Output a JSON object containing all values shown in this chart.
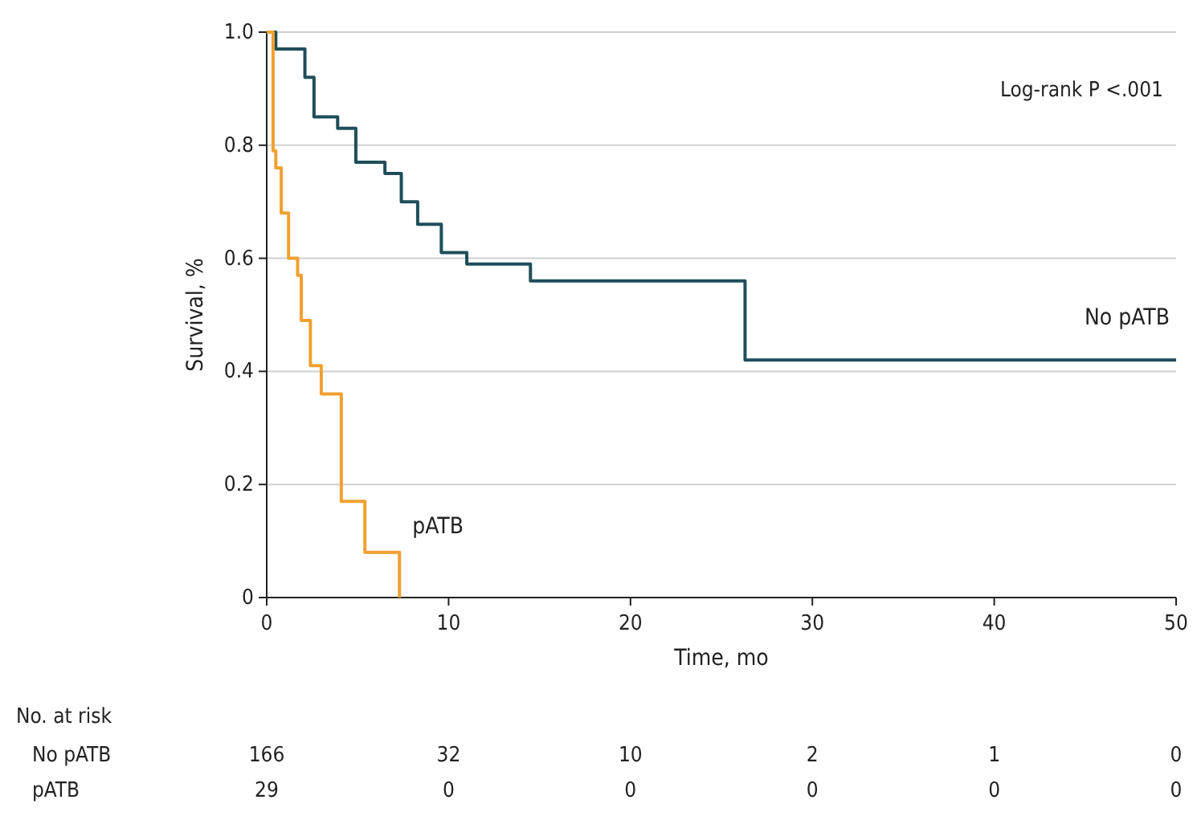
{
  "chart_data": {
    "type": "step",
    "xlabel": "Time, mo",
    "ylabel": "Survival, %",
    "xlim": [
      0,
      50
    ],
    "xticks": [
      0,
      10,
      20,
      30,
      40,
      50
    ],
    "ylim": [
      0,
      1
    ],
    "yticks": [
      {
        "value": 0,
        "label": "0"
      },
      {
        "value": 0.2,
        "label": "0.2"
      },
      {
        "value": 0.4,
        "label": "0.4"
      },
      {
        "value": 0.6,
        "label": "0.6"
      },
      {
        "value": 0.8,
        "label": "0.8"
      },
      {
        "value": 1,
        "label": "1.0"
      }
    ],
    "grid": "y",
    "series": [
      {
        "name": "No pATB",
        "color": "#1f4e5a",
        "x": [
          0,
          0.5,
          2.1,
          2.6,
          3.9,
          4.9,
          6.5,
          7.4,
          8.3,
          9.6,
          11,
          14.5,
          26.3,
          50
        ],
        "values": [
          1,
          0.97,
          0.92,
          0.85,
          0.83,
          0.77,
          0.75,
          0.7,
          0.66,
          0.61,
          0.59,
          0.56,
          0.42,
          0.42
        ]
      },
      {
        "name": "pATB",
        "color": "#f0a030",
        "x": [
          0,
          0.35,
          0.5,
          0.8,
          1.2,
          1.7,
          1.9,
          2.4,
          3,
          4.1,
          5.4,
          7.3
        ],
        "values": [
          1,
          0.79,
          0.76,
          0.68,
          0.6,
          0.57,
          0.49,
          0.41,
          0.36,
          0.17,
          0.08,
          0
        ]
      }
    ],
    "annotations": [
      "Log-rank P <.001",
      "No. at risk",
      "166",
      "32",
      "10",
      "2",
      "1",
      "0",
      "29",
      "0",
      "0",
      "0",
      "0",
      "0"
    ]
  }
}
